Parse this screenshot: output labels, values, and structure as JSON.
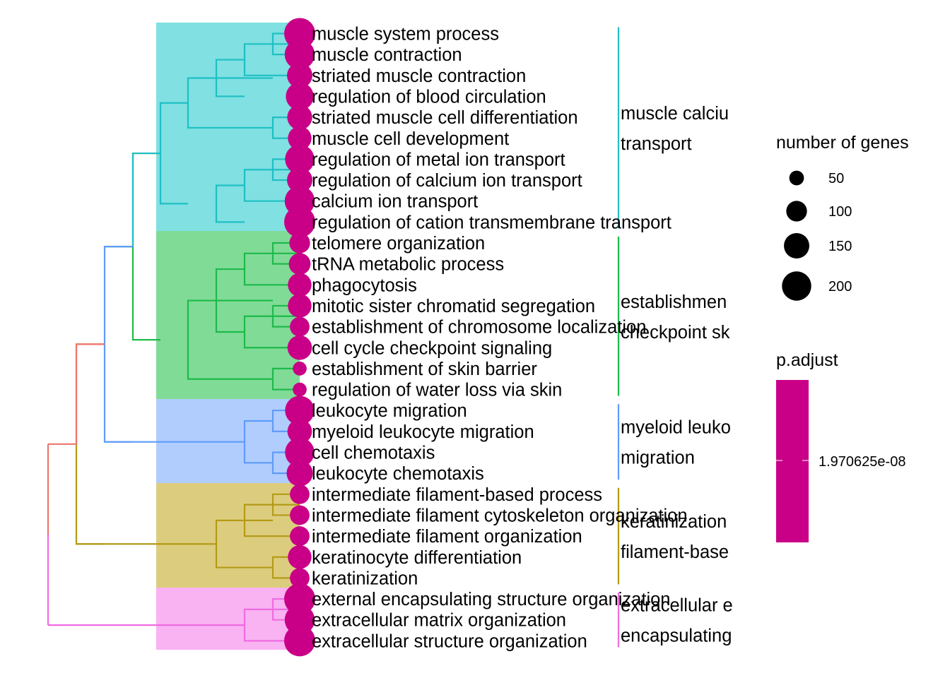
{
  "chart_data": {
    "type": "treeplot",
    "terms": [
      {
        "label": "muscle system process",
        "genes": 225,
        "cluster": 0
      },
      {
        "label": "muscle contraction",
        "genes": 210,
        "cluster": 0
      },
      {
        "label": "striated muscle contraction",
        "genes": 150,
        "cluster": 0
      },
      {
        "label": "regulation of blood circulation",
        "genes": 180,
        "cluster": 0
      },
      {
        "label": "striated muscle cell differentiation",
        "genes": 145,
        "cluster": 0
      },
      {
        "label": "muscle cell development",
        "genes": 130,
        "cluster": 0
      },
      {
        "label": "regulation of metal ion transport",
        "genes": 200,
        "cluster": 0
      },
      {
        "label": "regulation of calcium ion transport",
        "genes": 150,
        "cluster": 0
      },
      {
        "label": "calcium ion transport",
        "genes": 210,
        "cluster": 0
      },
      {
        "label": "regulation of cation transmembrane transport",
        "genes": 225,
        "cluster": 0
      },
      {
        "label": "telomere organization",
        "genes": 100,
        "cluster": 1
      },
      {
        "label": "tRNA metabolic process",
        "genes": 110,
        "cluster": 1
      },
      {
        "label": "phagocytosis",
        "genes": 130,
        "cluster": 1
      },
      {
        "label": "mitotic sister chromatid segregation",
        "genes": 130,
        "cluster": 1
      },
      {
        "label": "establishment of chromosome localization",
        "genes": 90,
        "cluster": 1
      },
      {
        "label": "cell cycle checkpoint signaling",
        "genes": 140,
        "cluster": 1
      },
      {
        "label": "establishment of skin barrier",
        "genes": 45,
        "cluster": 1
      },
      {
        "label": "regulation of water loss via skin",
        "genes": 45,
        "cluster": 1
      },
      {
        "label": "leukocyte migration",
        "genes": 200,
        "cluster": 2
      },
      {
        "label": "myeloid leukocyte migration",
        "genes": 140,
        "cluster": 2
      },
      {
        "label": "cell chemotaxis",
        "genes": 200,
        "cluster": 2
      },
      {
        "label": "leukocyte chemotaxis",
        "genes": 160,
        "cluster": 2
      },
      {
        "label": "intermediate filament-based process",
        "genes": 90,
        "cluster": 3
      },
      {
        "label": "intermediate filament cytoskeleton organization",
        "genes": 90,
        "cluster": 3
      },
      {
        "label": "intermediate filament organization",
        "genes": 90,
        "cluster": 3
      },
      {
        "label": "keratinocyte differentiation",
        "genes": 130,
        "cluster": 3
      },
      {
        "label": "keratinization",
        "genes": 90,
        "cluster": 3
      },
      {
        "label": "external encapsulating structure organization",
        "genes": 225,
        "cluster": 4
      },
      {
        "label": "extracellular matrix organization",
        "genes": 210,
        "cluster": 4
      },
      {
        "label": "extracellular structure organization",
        "genes": 225,
        "cluster": 4
      }
    ],
    "clusters": [
      {
        "label_lines": [
          "muscle calciu",
          "transport"
        ],
        "color": "#1FBFC4",
        "fill": "#80E0E2"
      },
      {
        "label_lines": [
          "establishmen",
          "checkpoint sk"
        ],
        "color": "#1DBA4A",
        "fill": "#80DB97"
      },
      {
        "label_lines": [
          "myeloid leuko",
          "migration"
        ],
        "color": "#5F9BF9",
        "fill": "#B1CDFE"
      },
      {
        "label_lines": [
          "keratinization",
          "filament-base"
        ],
        "color": "#B59A17",
        "fill": "#DCCD7E"
      },
      {
        "label_lines": [
          "extracellular e",
          "encapsulating"
        ],
        "color": "#EF6CE2",
        "fill": "#F9B2F2"
      }
    ],
    "top_link_colors": {
      "upper": "#F0756C",
      "lower": "#EF6CE2"
    },
    "point_color": "#C90087",
    "size_legend": {
      "title": "number of genes",
      "breaks": [
        "50",
        "100",
        "150",
        "200"
      ],
      "values": [
        50,
        100,
        150,
        200
      ]
    },
    "color_legend": {
      "title": "p.adjust",
      "label": "1.970625e-08",
      "color": "#C90087"
    }
  }
}
